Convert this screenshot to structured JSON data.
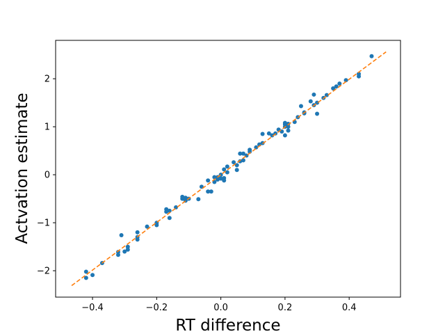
{
  "chart_data": {
    "type": "scatter",
    "title": "",
    "xlabel": "RT difference",
    "ylabel": "Actvation estimate",
    "xlim": [
      -0.515,
      0.56
    ],
    "ylim": [
      -2.55,
      2.8
    ],
    "xticks": [
      -0.4,
      -0.2,
      0.0,
      0.2,
      0.4
    ],
    "yticks": [
      -2,
      -1,
      0,
      1,
      2
    ],
    "xtick_labels": [
      "−0.4",
      "−0.2",
      "0.0",
      "0.2",
      "0.4"
    ],
    "ytick_labels": [
      "−2",
      "−1",
      "0",
      "1",
      "2"
    ],
    "grid": false,
    "series": [
      {
        "kind": "points",
        "color": "#1f77b4",
        "x": [
          -0.42,
          -0.42,
          -0.4,
          -0.37,
          -0.32,
          -0.32,
          -0.31,
          -0.3,
          -0.29,
          -0.29,
          -0.26,
          -0.26,
          -0.26,
          -0.23,
          -0.2,
          -0.2,
          -0.17,
          -0.17,
          -0.16,
          -0.16,
          -0.14,
          -0.12,
          -0.12,
          -0.11,
          -0.11,
          -0.1,
          -0.07,
          -0.06,
          -0.04,
          -0.04,
          -0.03,
          -0.02,
          -0.02,
          -0.01,
          -0.01,
          0.0,
          0.0,
          0.01,
          0.01,
          0.01,
          0.02,
          0.02,
          0.04,
          0.05,
          0.05,
          0.06,
          0.06,
          0.07,
          0.07,
          0.08,
          0.09,
          0.09,
          0.11,
          0.12,
          0.13,
          0.13,
          0.15,
          0.16,
          0.17,
          0.18,
          0.19,
          0.2,
          0.2,
          0.2,
          0.2,
          0.21,
          0.21,
          0.21,
          0.23,
          0.24,
          0.25,
          0.26,
          0.26,
          0.28,
          0.29,
          0.29,
          0.3,
          0.3,
          0.32,
          0.33,
          0.35,
          0.36,
          0.37,
          0.39,
          0.43,
          0.43,
          0.47
        ],
        "y": [
          -2.15,
          -2.02,
          -2.09,
          -1.84,
          -1.61,
          -1.67,
          -1.26,
          -1.6,
          -1.5,
          -1.56,
          -1.2,
          -1.3,
          -1.35,
          -1.08,
          -1.0,
          -1.05,
          -0.72,
          -0.77,
          -0.75,
          -0.9,
          -0.68,
          -0.5,
          -0.46,
          -0.48,
          -0.54,
          -0.5,
          -0.51,
          -0.25,
          -0.35,
          -0.12,
          -0.35,
          -0.15,
          -0.05,
          -0.05,
          -0.1,
          -0.08,
          0.0,
          0.11,
          -0.07,
          -0.12,
          0.05,
          0.17,
          0.26,
          0.1,
          0.2,
          0.28,
          0.44,
          0.3,
          0.44,
          0.4,
          0.52,
          0.48,
          0.57,
          0.63,
          0.66,
          0.85,
          0.86,
          0.82,
          0.86,
          0.94,
          0.9,
          0.82,
          1.0,
          1.05,
          1.08,
          0.92,
          1.0,
          1.06,
          1.1,
          1.2,
          1.43,
          1.28,
          1.3,
          1.53,
          1.45,
          1.67,
          1.27,
          1.5,
          1.6,
          1.66,
          1.8,
          1.84,
          1.9,
          1.97,
          2.05,
          2.1,
          2.47
        ]
      },
      {
        "kind": "dashed-line",
        "color": "#ff7f0e",
        "x": [
          -0.465,
          0.515
        ],
        "y": [
          -2.31,
          2.56
        ]
      }
    ]
  }
}
